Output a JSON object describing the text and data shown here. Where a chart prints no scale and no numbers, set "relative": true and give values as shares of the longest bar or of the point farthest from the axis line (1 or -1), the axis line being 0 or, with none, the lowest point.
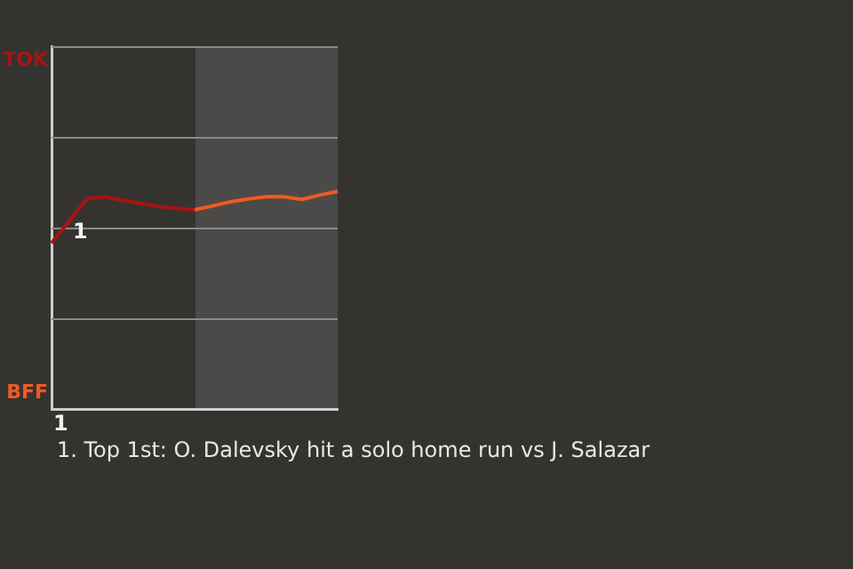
{
  "chart_data": {
    "type": "line",
    "relative": true,
    "categories": [
      null,
      null,
      null,
      null,
      null,
      null,
      null,
      null,
      null,
      null,
      null,
      null,
      null,
      null,
      null,
      null,
      null
    ],
    "series": [
      {
        "color": "#a81410",
        "values": [
          0.762,
          0.865,
          0.967,
          0.975,
          0.958,
          0.945,
          0.93,
          0.922,
          0.915,
          null,
          null,
          null,
          null,
          null,
          null,
          null,
          null
        ]
      },
      {
        "color": "#f05a22",
        "values": [
          null,
          null,
          null,
          null,
          null,
          null,
          null,
          null,
          0.915,
          0.933,
          0.952,
          0.965,
          0.975,
          0.975,
          0.963,
          0.983,
          1
        ]
      }
    ],
    "ref_lines": [
      {
        "axis": "y",
        "value": 0.417,
        "color": "#8a8a8a"
      },
      {
        "axis": "y",
        "value": 0.833,
        "color": "#8a8a8a"
      },
      {
        "axis": "y",
        "value": 1.25,
        "color": "#8a8a8a"
      },
      {
        "axis": "y",
        "value": 1.667,
        "color": "#8a8a8a"
      }
    ],
    "grid": false,
    "marker": "none",
    "line_style": "solid",
    "annotations": [
      "TOK",
      "BFF",
      "1",
      "1",
      "1. Top 1st: O. Dalevsky hit a solo home run vs J. Salazar"
    ]
  }
}
